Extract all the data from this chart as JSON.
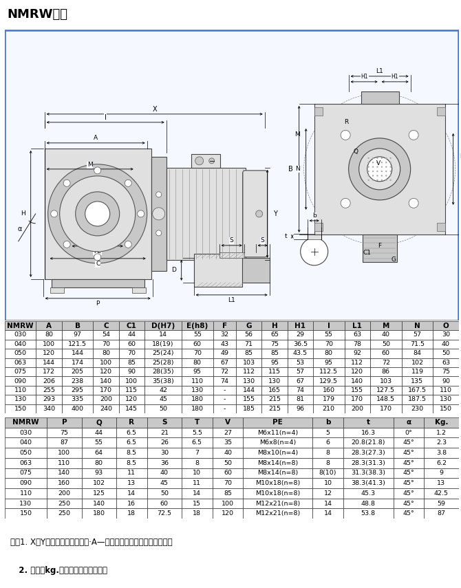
{
  "title": "NMRW尺寸",
  "border_color": "#4472c4",
  "bg_color": "#ffffff",
  "table1_headers": [
    "NMRW",
    "A",
    "B",
    "C",
    "C1",
    "D(H7)",
    "E(h8)",
    "F",
    "G",
    "H",
    "H1",
    "I",
    "L1",
    "M",
    "N",
    "O"
  ],
  "table1_data": [
    [
      "030",
      "80",
      "97",
      "54",
      "44",
      "14",
      "55",
      "32",
      "56",
      "65",
      "29",
      "55",
      "63",
      "40",
      "57",
      "30"
    ],
    [
      "040",
      "100",
      "121.5",
      "70",
      "60",
      "18(19)",
      "60",
      "43",
      "71",
      "75",
      "36.5",
      "70",
      "78",
      "50",
      "71.5",
      "40"
    ],
    [
      "050",
      "120",
      "144",
      "80",
      "70",
      "25(24)",
      "70",
      "49",
      "85",
      "85",
      "43.5",
      "80",
      "92",
      "60",
      "84",
      "50"
    ],
    [
      "063",
      "144",
      "174",
      "100",
      "85",
      "25(28)",
      "80",
      "67",
      "103",
      "95",
      "53",
      "95",
      "112",
      "72",
      "102",
      "63"
    ],
    [
      "075",
      "172",
      "205",
      "120",
      "90",
      "28(35)",
      "95",
      "72",
      "112",
      "115",
      "57",
      "112.5",
      "120",
      "86",
      "119",
      "75"
    ],
    [
      "090",
      "206",
      "238",
      "140",
      "100",
      "35(38)",
      "110",
      "74",
      "130",
      "130",
      "67",
      "129.5",
      "140",
      "103",
      "135",
      "90"
    ],
    [
      "110",
      "255",
      "295",
      "170",
      "115",
      "42",
      "130",
      "-",
      "144",
      "165",
      "74",
      "160",
      "155",
      "127.5",
      "167.5",
      "110"
    ],
    [
      "130",
      "293",
      "335",
      "200",
      "120",
      "45",
      "180",
      "-",
      "155",
      "215",
      "81",
      "179",
      "170",
      "148.5",
      "187.5",
      "130"
    ],
    [
      "150",
      "340",
      "400",
      "240",
      "145",
      "50",
      "180",
      "-",
      "185",
      "215",
      "96",
      "210",
      "200",
      "170",
      "230",
      "150"
    ]
  ],
  "table2_headers": [
    "NMRW",
    "P",
    "Q",
    "R",
    "S",
    "T",
    "V",
    "PE",
    "b",
    "t",
    "α",
    "Kg."
  ],
  "table2_data": [
    [
      "030",
      "75",
      "44",
      "6.5",
      "21",
      "5.5",
      "27",
      "M6x11(n=4)",
      "5",
      "16.3",
      "0°",
      "1.2"
    ],
    [
      "040",
      "87",
      "55",
      "6.5",
      "26",
      "6.5",
      "35",
      "M6x8(n=4)",
      "6",
      "20.8(21.8)",
      "45°",
      "2.3"
    ],
    [
      "050",
      "100",
      "64",
      "8.5",
      "30",
      "7",
      "40",
      "M8x10(n=4)",
      "8",
      "28.3(27.3)",
      "45°",
      "3.8"
    ],
    [
      "063",
      "110",
      "80",
      "8.5",
      "36",
      "8",
      "50",
      "M8x14(n=8)",
      "8",
      "28.3(31.3)",
      "45°",
      "6.2"
    ],
    [
      "075",
      "140",
      "93",
      "11",
      "40",
      "10",
      "60",
      "M8x14(n=8)",
      "8(10)",
      "31.3(38.3)",
      "45°",
      "9"
    ],
    [
      "090",
      "160",
      "102",
      "13",
      "45",
      "11",
      "70",
      "M10x18(n=8)",
      "10",
      "38.3(41.3)",
      "45°",
      "13"
    ],
    [
      "110",
      "200",
      "125",
      "14",
      "50",
      "14",
      "85",
      "M10x18(n=8)",
      "12",
      "45.3",
      "45°",
      "42.5"
    ],
    [
      "130",
      "250",
      "140",
      "16",
      "60",
      "15",
      "100",
      "M12x21(n=8)",
      "14",
      "48.8",
      "45°",
      "59"
    ],
    [
      "150",
      "250",
      "180",
      "18",
      "72.5",
      "18",
      "120",
      "M12x21(n=8)",
      "14",
      "53.8",
      "45°",
      "87"
    ]
  ],
  "note1": "注：1. X、Y尺寸参见本公司样本·A—《通用电机》篇中的尺寸部分；",
  "note2": "   2. 重量（kg.）不包含电机的重量。"
}
